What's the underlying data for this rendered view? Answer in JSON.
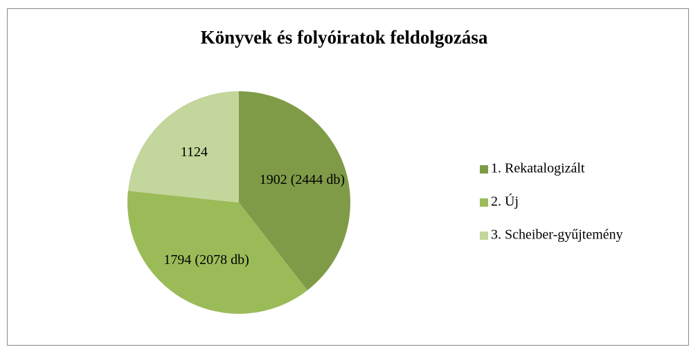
{
  "chart_data": {
    "type": "pie",
    "title": "Könyvek és folyóiratok feldolgozása",
    "categories": [
      "1. Rekatalogizált",
      "2. Új",
      "3. Scheiber-gyűjtemény"
    ],
    "values": [
      1902,
      1794,
      1124
    ],
    "value_labels": [
      "1902 (2444 db)",
      "1794 (2078 db)",
      "1124"
    ],
    "colors": [
      "#7f9b48",
      "#9bbb59",
      "#c3d69b"
    ],
    "legend": "right"
  }
}
